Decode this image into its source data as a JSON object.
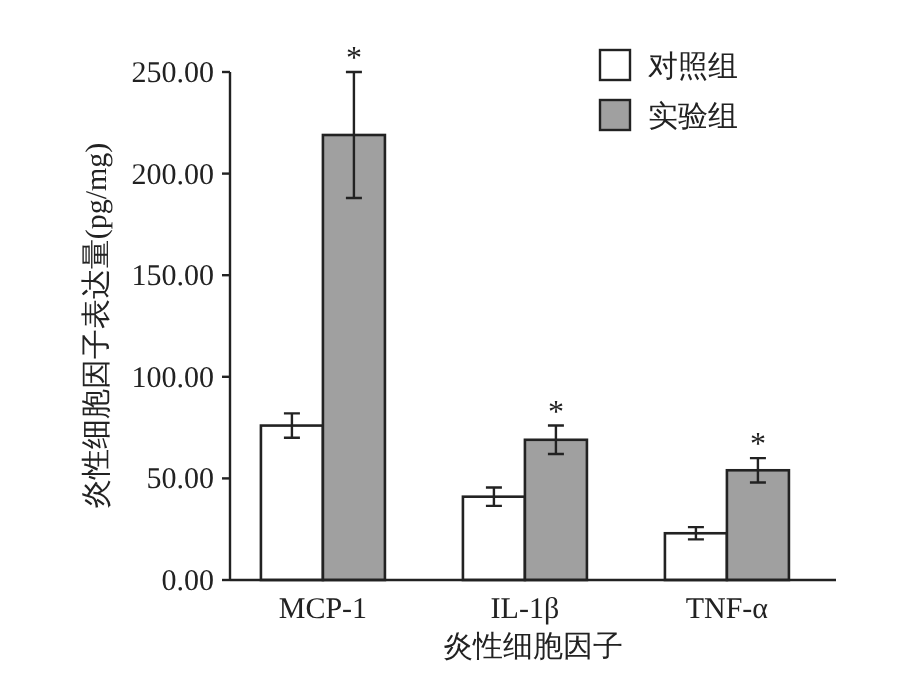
{
  "chart_data": {
    "type": "bar",
    "xlabel": "炎性细胞因子",
    "ylabel": "炎性细胞因子表达量(pg/mg)",
    "categories": [
      "MCP-1",
      "IL-1β",
      "TNF-α"
    ],
    "series": [
      {
        "name": "对照组",
        "color": "#ffffff",
        "values": [
          76,
          41,
          23
        ],
        "errors": [
          6,
          4.5,
          3
        ]
      },
      {
        "name": "实验组",
        "color": "#a0a0a0",
        "values": [
          219,
          69,
          54
        ],
        "errors": [
          31,
          7,
          6
        ]
      }
    ],
    "ylim": [
      0,
      250
    ],
    "yticks": [
      {
        "value": 0,
        "label": "0.00"
      },
      {
        "value": 50,
        "label": "50.00"
      },
      {
        "value": 100,
        "label": "100.00"
      },
      {
        "value": 150,
        "label": "150.00"
      },
      {
        "value": 200,
        "label": "200.00"
      },
      {
        "value": 250,
        "label": "250.00"
      }
    ],
    "legend": "top right",
    "annotations": [
      "*",
      "*",
      "*"
    ]
  }
}
